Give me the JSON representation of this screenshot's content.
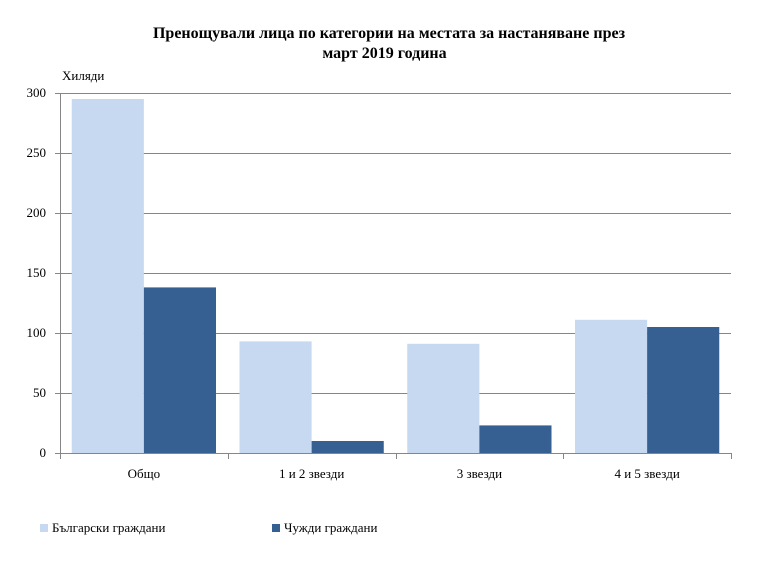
{
  "chart_data": {
    "type": "bar",
    "title_line1": "Пренощували лица по категории на местата за настаняване през",
    "title_line2": "март 2019 година",
    "unit_label": "Хиляди",
    "categories": [
      "Общо",
      "1 и 2 звезди",
      "3 звезди",
      "4 и 5 звезди"
    ],
    "series": [
      {
        "name": "Български граждани",
        "color": "#c6d9f1",
        "values": [
          295,
          93,
          91,
          111
        ]
      },
      {
        "name": "Чужди граждани",
        "color": "#376092",
        "values": [
          138,
          10,
          23,
          105
        ]
      }
    ],
    "ylim": [
      0,
      300
    ],
    "yticks": [
      0,
      50,
      100,
      150,
      200,
      250,
      300
    ],
    "grid": true,
    "legend_position": "bottom-left"
  }
}
